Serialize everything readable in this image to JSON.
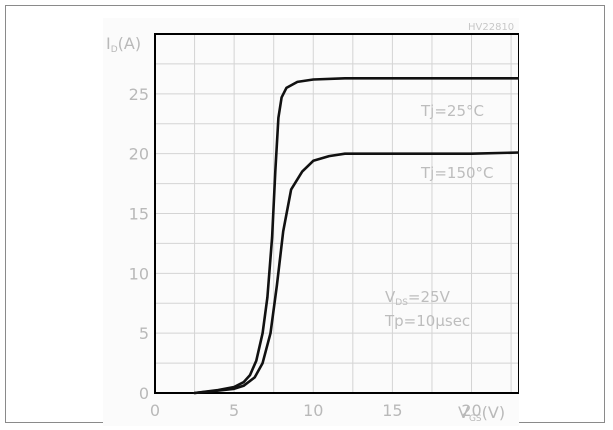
{
  "chart_data": {
    "type": "line",
    "code": "HV22810",
    "title": "",
    "xlabel": "VGS(V)",
    "ylabel": "ID(A)",
    "xlim": [
      0,
      23
    ],
    "ylim": [
      0,
      30
    ],
    "grid": true,
    "x_ticks": [
      0,
      5,
      10,
      15,
      20
    ],
    "y_ticks": [
      0,
      5,
      10,
      15,
      20,
      25
    ],
    "series": [
      {
        "name": "Tj=25°C",
        "points": [
          [
            2.5,
            0
          ],
          [
            4,
            0.25
          ],
          [
            5,
            0.5
          ],
          [
            5.6,
            0.9
          ],
          [
            6,
            1.5
          ],
          [
            6.4,
            2.7
          ],
          [
            6.8,
            5
          ],
          [
            7.1,
            8
          ],
          [
            7.4,
            13
          ],
          [
            7.6,
            18.5
          ],
          [
            7.8,
            23
          ],
          [
            8,
            24.7
          ],
          [
            8.3,
            25.5
          ],
          [
            9,
            26
          ],
          [
            10,
            26.2
          ],
          [
            12,
            26.3
          ],
          [
            16,
            26.3
          ],
          [
            20,
            26.3
          ],
          [
            23,
            26.3
          ]
        ]
      },
      {
        "name": "Tj=150°C",
        "points": [
          [
            2.5,
            0
          ],
          [
            4,
            0.2
          ],
          [
            5,
            0.35
          ],
          [
            5.6,
            0.6
          ],
          [
            6.3,
            1.3
          ],
          [
            6.8,
            2.5
          ],
          [
            7.3,
            5
          ],
          [
            7.7,
            9
          ],
          [
            8.1,
            13.5
          ],
          [
            8.6,
            17
          ],
          [
            9.3,
            18.5
          ],
          [
            10,
            19.4
          ],
          [
            11,
            19.8
          ],
          [
            12,
            20
          ],
          [
            16,
            20
          ],
          [
            20,
            20
          ],
          [
            23,
            20.1
          ]
        ]
      }
    ],
    "annotation_lines": [
      "VDS=25V",
      "Tp=10μsec"
    ]
  }
}
